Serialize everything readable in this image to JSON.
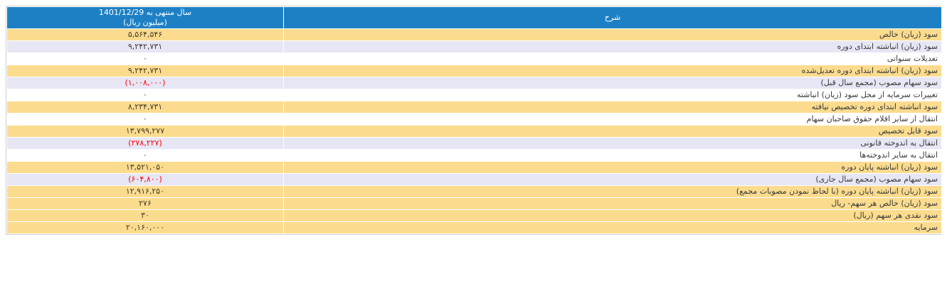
{
  "colors": {
    "header_bg": "#1e80c4",
    "header_text": "#ffffff",
    "row_wheat": "#fbdc8e",
    "row_lavender": "#e6e6f5",
    "row_white": "#ffffff",
    "label_text": "#3a3a3a",
    "value_text": "#443c2a",
    "negative_text": "#ff0000"
  },
  "table": {
    "header": {
      "period_line1": "سال منتهی به 1401/12/29",
      "period_line2": "(میلیون ریال)",
      "description": "شرح"
    },
    "rows": [
      {
        "label": "سود (زیان) خالص",
        "value": "۵,۵۶۴,۵۴۶",
        "style": "wheat",
        "negative": false
      },
      {
        "label": "سود (زیان) انباشته ابتدای دوره",
        "value": "۹,۲۴۲,۷۳۱",
        "style": "lavender",
        "negative": false
      },
      {
        "label": "تعدیلات سنواتی",
        "value": "۰",
        "style": "white",
        "negative": false
      },
      {
        "label": "سود (زیان) انباشته ابتدای دوره تعدیل‌شده",
        "value": "۹,۲۴۲,۷۳۱",
        "style": "wheat",
        "negative": false
      },
      {
        "label": "سود سهام مصوب (مجمع سال قبل)",
        "value": "(۱,۰۰۸,۰۰۰)",
        "style": "lavender",
        "negative": true
      },
      {
        "label": "تغییرات سرمایه از محل سود (زیان) انباشته",
        "value": "۰",
        "style": "white",
        "negative": false
      },
      {
        "label": "سود انباشته ابتدای دوره تخصیص نیافته",
        "value": "۸,۲۳۴,۷۳۱",
        "style": "wheat",
        "negative": false
      },
      {
        "label": "انتقال از سایر اقلام حقوق صاحبان سهام",
        "value": "۰",
        "style": "white",
        "negative": false
      },
      {
        "label": "سود قابل تخصیص",
        "value": "۱۳,۷۹۹,۲۷۷",
        "style": "wheat",
        "negative": false
      },
      {
        "label": "انتقال به اندوخته قانونی",
        "value": "(۲۷۸,۲۲۷)",
        "style": "lavender",
        "negative": true
      },
      {
        "label": "انتقال به سایر اندوخته‌ها",
        "value": "۰",
        "style": "white",
        "negative": false
      },
      {
        "label": "سود (زیان) انباشته پایان دوره",
        "value": "۱۳,۵۲۱,۰۵۰",
        "style": "wheat",
        "negative": false
      },
      {
        "label": "سود سهام مصوب (مجمع سال جاری)",
        "value": "(۶۰۴,۸۰۰)",
        "style": "lavender",
        "negative": true
      },
      {
        "label": "سود (زیان) انباشته پایان دوره (با لحاظ نمودن مصوبات مجمع)",
        "value": "۱۲,۹۱۶,۲۵۰",
        "style": "wheat",
        "negative": false
      },
      {
        "label": "سود (زیان) خالص هر سهم- ریال",
        "value": "۲۷۶",
        "style": "wheat",
        "negative": false
      },
      {
        "label": "سود نقدی هر سهم (ریال)",
        "value": "۳۰",
        "style": "wheat",
        "negative": false
      },
      {
        "label": "سرمایه",
        "value": "۲۰,۱۶۰,۰۰۰",
        "style": "wheat",
        "negative": false
      }
    ]
  }
}
